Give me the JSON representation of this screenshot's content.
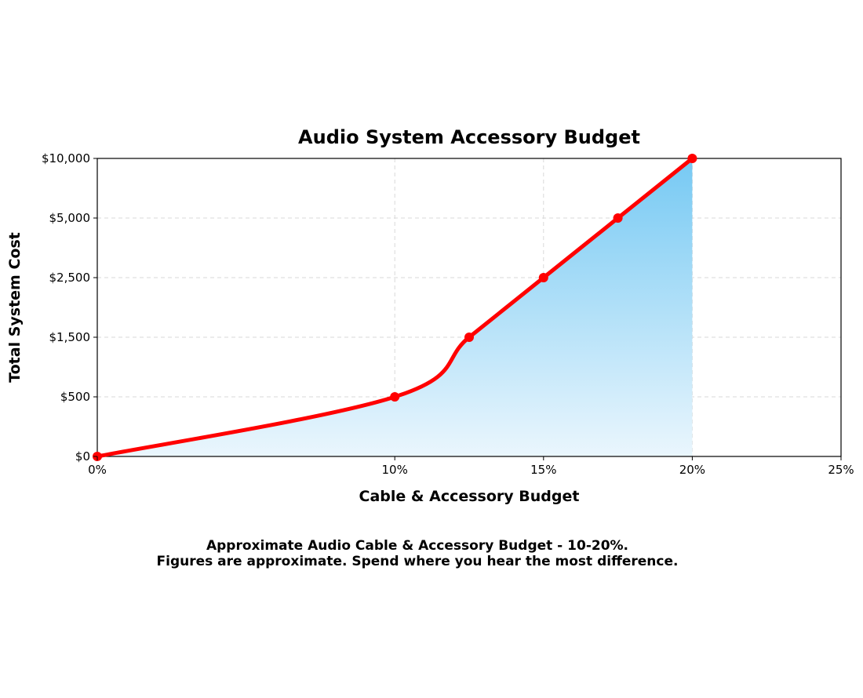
{
  "chart_data": {
    "type": "area",
    "title": "Audio System Accessory Budget",
    "xlabel": "Cable & Accessory Budget",
    "ylabel": "Total System Cost",
    "x_ticks": [
      {
        "value": 0,
        "label": "0%"
      },
      {
        "value": 10,
        "label": "10%"
      },
      {
        "value": 15,
        "label": "15%"
      },
      {
        "value": 20,
        "label": "20%"
      },
      {
        "value": 25,
        "label": "25%"
      }
    ],
    "y_ticks": [
      "$0",
      "$500",
      "$1,500",
      "$2,500",
      "$5,000",
      "$10,000"
    ],
    "xlim": [
      0,
      25
    ],
    "y_scale": "ordinal (evenly spaced tick levels)",
    "grid": true,
    "series": [
      {
        "points": [
          {
            "x": 0,
            "y": 0
          },
          {
            "x": 10,
            "y": 500
          },
          {
            "x": 12.5,
            "y": 1500
          },
          {
            "x": 15,
            "y": 2500
          },
          {
            "x": 17.5,
            "y": 5000
          },
          {
            "x": 20,
            "y": 10000
          }
        ]
      }
    ],
    "line_color": "#ff0000",
    "fill_gradient": [
      "#eaf6fd",
      "#76c9f3"
    ]
  },
  "caption": {
    "line1": "Approximate Audio Cable & Accessory Budget - 10-20%.",
    "line2": "Figures are approximate. Spend where you hear the most difference."
  }
}
